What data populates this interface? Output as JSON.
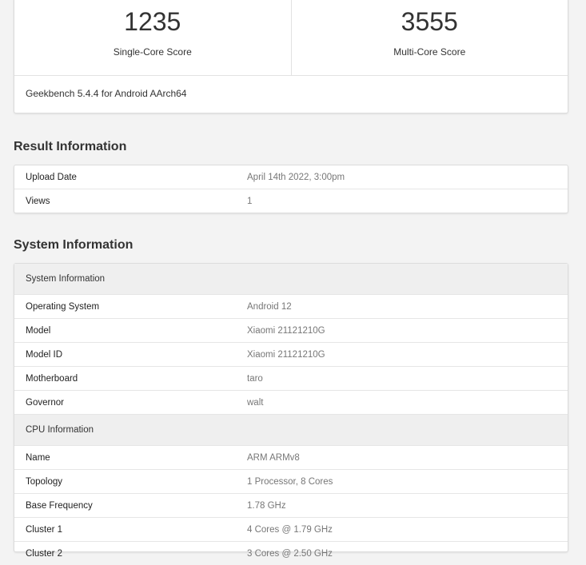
{
  "scores": {
    "single_core": {
      "value": "1235",
      "label": "Single-Core Score"
    },
    "multi_core": {
      "value": "3555",
      "label": "Multi-Core Score"
    },
    "version": "Geekbench 5.4.4 for Android AArch64"
  },
  "result_information": {
    "title": "Result Information",
    "rows": [
      {
        "key": "Upload Date",
        "value": "April 14th 2022, 3:00pm"
      },
      {
        "key": "Views",
        "value": "1"
      }
    ]
  },
  "system_information": {
    "title": "System Information",
    "sections": [
      {
        "header": "System Information",
        "rows": [
          {
            "key": "Operating System",
            "value": "Android 12"
          },
          {
            "key": "Model",
            "value": "Xiaomi 21121210G"
          },
          {
            "key": "Model ID",
            "value": "Xiaomi 21121210G"
          },
          {
            "key": "Motherboard",
            "value": "taro"
          },
          {
            "key": "Governor",
            "value": "walt"
          }
        ]
      },
      {
        "header": "CPU Information",
        "rows": [
          {
            "key": "Name",
            "value": "ARM ARMv8"
          },
          {
            "key": "Topology",
            "value": "1 Processor, 8 Cores"
          },
          {
            "key": "Base Frequency",
            "value": "1.78 GHz"
          },
          {
            "key": "Cluster 1",
            "value": "4 Cores @ 1.79 GHz"
          },
          {
            "key": "Cluster 2",
            "value": "3 Cores @ 2.50 GHz"
          }
        ]
      }
    ]
  }
}
